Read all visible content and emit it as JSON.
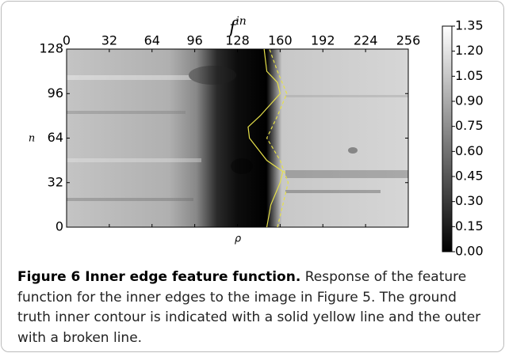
{
  "chart_data": {
    "type": "heatmap",
    "x_label_top": {
      "base": "f",
      "superscript": "in"
    },
    "x_label": "ρ",
    "y_label": "n",
    "xlim": [
      0,
      256
    ],
    "xticks": [
      0,
      32,
      64,
      96,
      128,
      160,
      192,
      224,
      256
    ],
    "ylim": [
      0,
      128
    ],
    "yticks": [
      0,
      32,
      64,
      96,
      128
    ],
    "colorbar": {
      "lim": [
        0,
        1.35
      ],
      "ticks": [
        {
          "value": 0,
          "label": "0.00"
        },
        {
          "value": 0.15,
          "label": "0.15"
        },
        {
          "value": 0.3,
          "label": "0.30"
        },
        {
          "value": 0.45,
          "label": "0.45"
        },
        {
          "value": 0.6,
          "label": "0.60"
        },
        {
          "value": 0.75,
          "label": "0.75"
        },
        {
          "value": 0.9,
          "label": "0.90"
        },
        {
          "value": 1.05,
          "label": "1.05"
        },
        {
          "value": 1.2,
          "label": "1.20"
        },
        {
          "value": 1.35,
          "label": "1.35"
        }
      ]
    },
    "lines": [
      {
        "color": "#e6e04a",
        "dashed": false,
        "x": [
          150,
          153,
          160,
          162,
          150,
          137,
          136,
          145,
          160,
          158,
          150,
          148
        ],
        "y": [
          0,
          16,
          32,
          40,
          48,
          64,
          72,
          80,
          96,
          104,
          112,
          128
        ]
      },
      {
        "color": "#e6e04a",
        "dashed": true,
        "x": [
          158,
          162,
          166,
          160,
          150,
          158,
          165,
          158,
          152
        ],
        "y": [
          0,
          16,
          32,
          48,
          64,
          80,
          96,
          112,
          128
        ]
      }
    ]
  },
  "caption": {
    "label": "Figure 6 Inner edge feature function.",
    "text": "Response of the feature function for the inner edges to the image in Figure 5. The ground truth inner contour is indicated with a solid yellow line and the outer with a broken line."
  }
}
